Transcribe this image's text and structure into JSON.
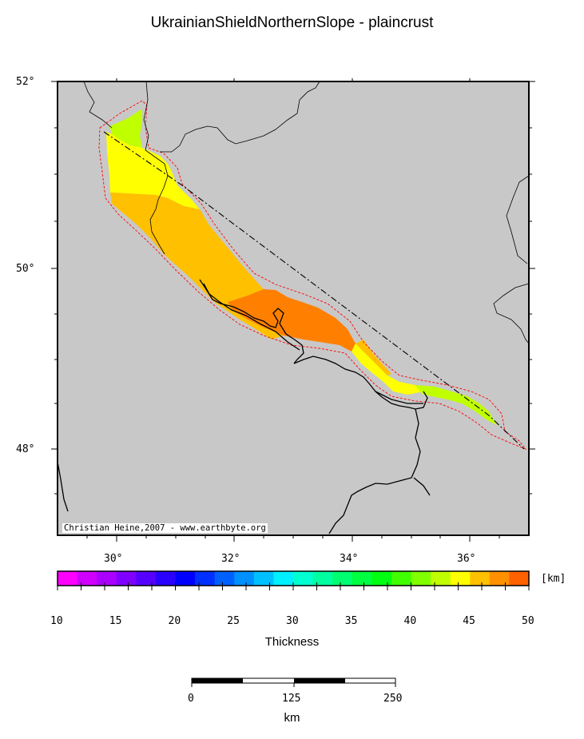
{
  "title": "UkrainianShieldNorthernSlope - plaincrust",
  "credit": "Christian Heine,2007 - www.earthbyte.org",
  "map": {
    "lat_labels": [
      "52°",
      "50°",
      "48°"
    ],
    "lon_labels": [
      "30°",
      "32°",
      "34°",
      "36°"
    ],
    "land_color": "#c8c8c8"
  },
  "colorbar": {
    "unit": "[km]",
    "title": "Thickness",
    "tick_labels": [
      "10",
      "15",
      "20",
      "25",
      "30",
      "35",
      "40",
      "45",
      "50"
    ],
    "range": [
      10,
      50
    ],
    "colors": [
      "#ff00ff",
      "#d000ff",
      "#aa00ff",
      "#8000ff",
      "#5500ff",
      "#2a00ff",
      "#0000ff",
      "#0030ff",
      "#0060ff",
      "#0090ff",
      "#00c0ff",
      "#00f0ff",
      "#00ffd0",
      "#00ffa0",
      "#00ff70",
      "#00ff40",
      "#00ff10",
      "#40ff00",
      "#80ff00",
      "#c0ff00",
      "#ffff00",
      "#ffc000",
      "#ff9000",
      "#ff6000"
    ]
  },
  "scalebar": {
    "labels": [
      "0",
      "125",
      "250"
    ],
    "unit": "km"
  },
  "thickness_zones": [
    {
      "name": "zone-40-42",
      "color": "#c0ff00"
    },
    {
      "name": "zone-42-44",
      "color": "#ffff00"
    },
    {
      "name": "zone-44-46",
      "color": "#ffc000"
    },
    {
      "name": "zone-46-48",
      "color": "#ff8000"
    }
  ]
}
